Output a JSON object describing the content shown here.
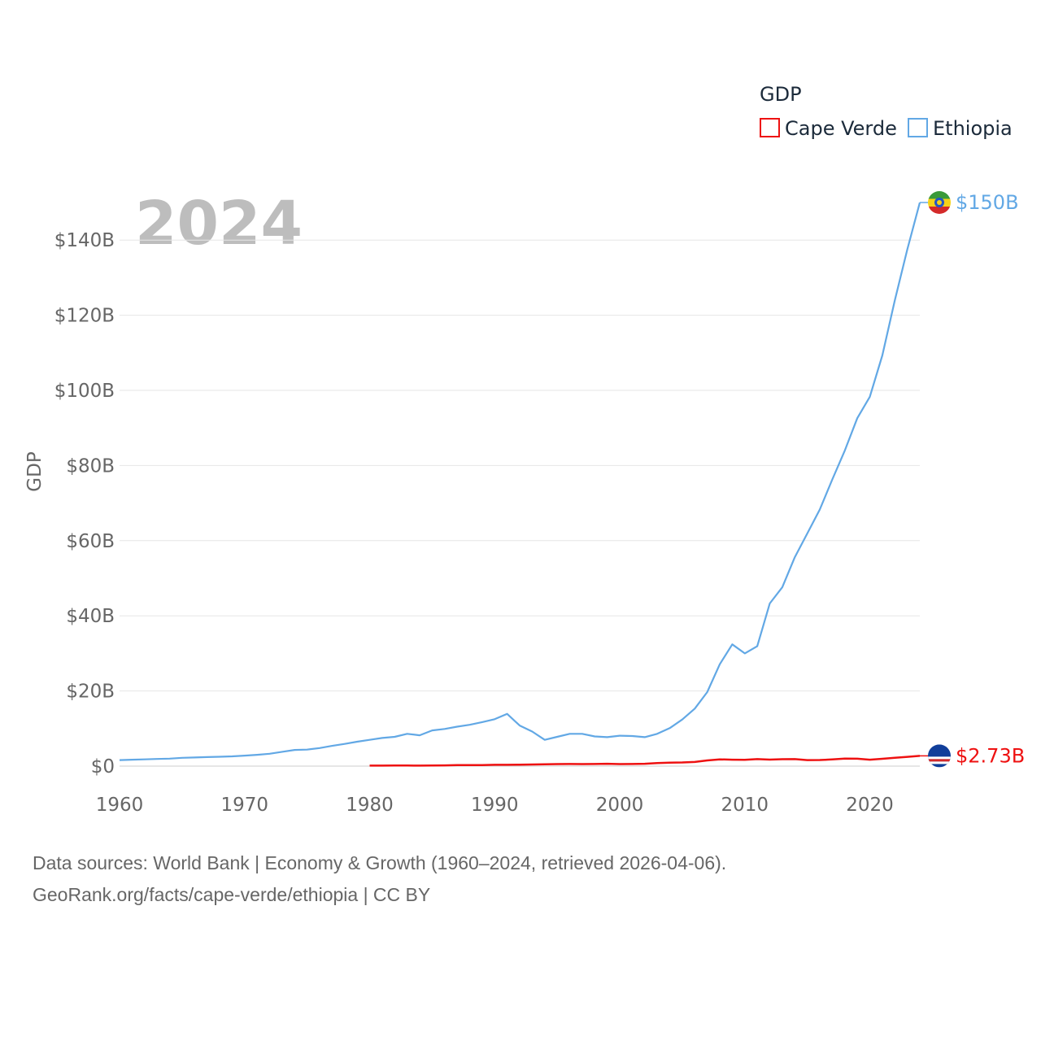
{
  "chart_data": {
    "type": "line",
    "title": "GDP",
    "year_label": "2024",
    "ylabel": "GDP",
    "xlabel": "",
    "xlim": [
      1960,
      2024
    ],
    "ylim": [
      0,
      150
    ],
    "x_ticks": [
      "1960",
      "1970",
      "1980",
      "1990",
      "2000",
      "2010",
      "2020"
    ],
    "y_ticks": [
      "$0",
      "$20B",
      "$40B",
      "$60B",
      "$80B",
      "$100B",
      "$120B",
      "$140B"
    ],
    "y_tick_values": [
      0,
      20,
      40,
      60,
      80,
      100,
      120,
      140
    ],
    "legend": [
      "Cape Verde",
      "Ethiopia"
    ],
    "series": [
      {
        "name": "Cape Verde",
        "color": "#ee1111",
        "end_label": "$2.73B",
        "x": [
          1980,
          1981,
          1982,
          1983,
          1984,
          1985,
          1986,
          1987,
          1988,
          1989,
          1990,
          1991,
          1992,
          1993,
          1994,
          1995,
          1996,
          1997,
          1998,
          1999,
          2000,
          2001,
          2002,
          2003,
          2004,
          2005,
          2006,
          2007,
          2008,
          2009,
          2010,
          2011,
          2012,
          2013,
          2014,
          2015,
          2016,
          2017,
          2018,
          2019,
          2020,
          2021,
          2022,
          2023,
          2024
        ],
        "values": [
          0.14,
          0.14,
          0.15,
          0.15,
          0.14,
          0.15,
          0.2,
          0.25,
          0.28,
          0.29,
          0.34,
          0.35,
          0.38,
          0.43,
          0.47,
          0.55,
          0.57,
          0.55,
          0.57,
          0.62,
          0.54,
          0.56,
          0.62,
          0.8,
          0.92,
          0.97,
          1.11,
          1.51,
          1.79,
          1.71,
          1.66,
          1.87,
          1.74,
          1.85,
          1.86,
          1.6,
          1.62,
          1.77,
          1.99,
          1.98,
          1.7,
          1.94,
          2.21,
          2.47,
          2.73
        ]
      },
      {
        "name": "Ethiopia",
        "color": "#62a8e5",
        "end_label": "$150B",
        "x": [
          1960,
          1961,
          1962,
          1963,
          1964,
          1965,
          1966,
          1967,
          1968,
          1969,
          1970,
          1971,
          1972,
          1973,
          1974,
          1975,
          1976,
          1977,
          1978,
          1979,
          1980,
          1981,
          1982,
          1983,
          1984,
          1985,
          1986,
          1987,
          1988,
          1989,
          1990,
          1991,
          1992,
          1993,
          1994,
          1995,
          1996,
          1997,
          1998,
          1999,
          2000,
          2001,
          2002,
          2003,
          2004,
          2005,
          2006,
          2007,
          2008,
          2009,
          2010,
          2011,
          2012,
          2013,
          2014,
          2015,
          2016,
          2017,
          2018,
          2019,
          2020,
          2021,
          2022,
          2023,
          2024
        ],
        "values": [
          1.6,
          1.7,
          1.8,
          1.9,
          2.0,
          2.2,
          2.3,
          2.4,
          2.5,
          2.6,
          2.8,
          3.0,
          3.3,
          3.8,
          4.3,
          4.4,
          4.8,
          5.4,
          5.9,
          6.5,
          7.0,
          7.5,
          7.8,
          8.6,
          8.2,
          9.5,
          9.9,
          10.5,
          11.0,
          11.7,
          12.5,
          13.9,
          10.8,
          9.2,
          7.0,
          7.8,
          8.6,
          8.6,
          7.9,
          7.7,
          8.1,
          8.0,
          7.7,
          8.6,
          10.1,
          12.4,
          15.3,
          19.7,
          27.1,
          32.4,
          30.0,
          31.9,
          43.3,
          47.6,
          55.6,
          61.9,
          68.3,
          76.3,
          84.0,
          92.6,
          98.3,
          109.3,
          124.0,
          137.5,
          150.0
        ]
      }
    ]
  },
  "footer": {
    "line1": "Data sources: World Bank | Economy & Growth (1960–2024, retrieved 2026-04-06).",
    "line2": "GeoRank.org/facts/cape-verde/ethiopia | CC BY"
  }
}
